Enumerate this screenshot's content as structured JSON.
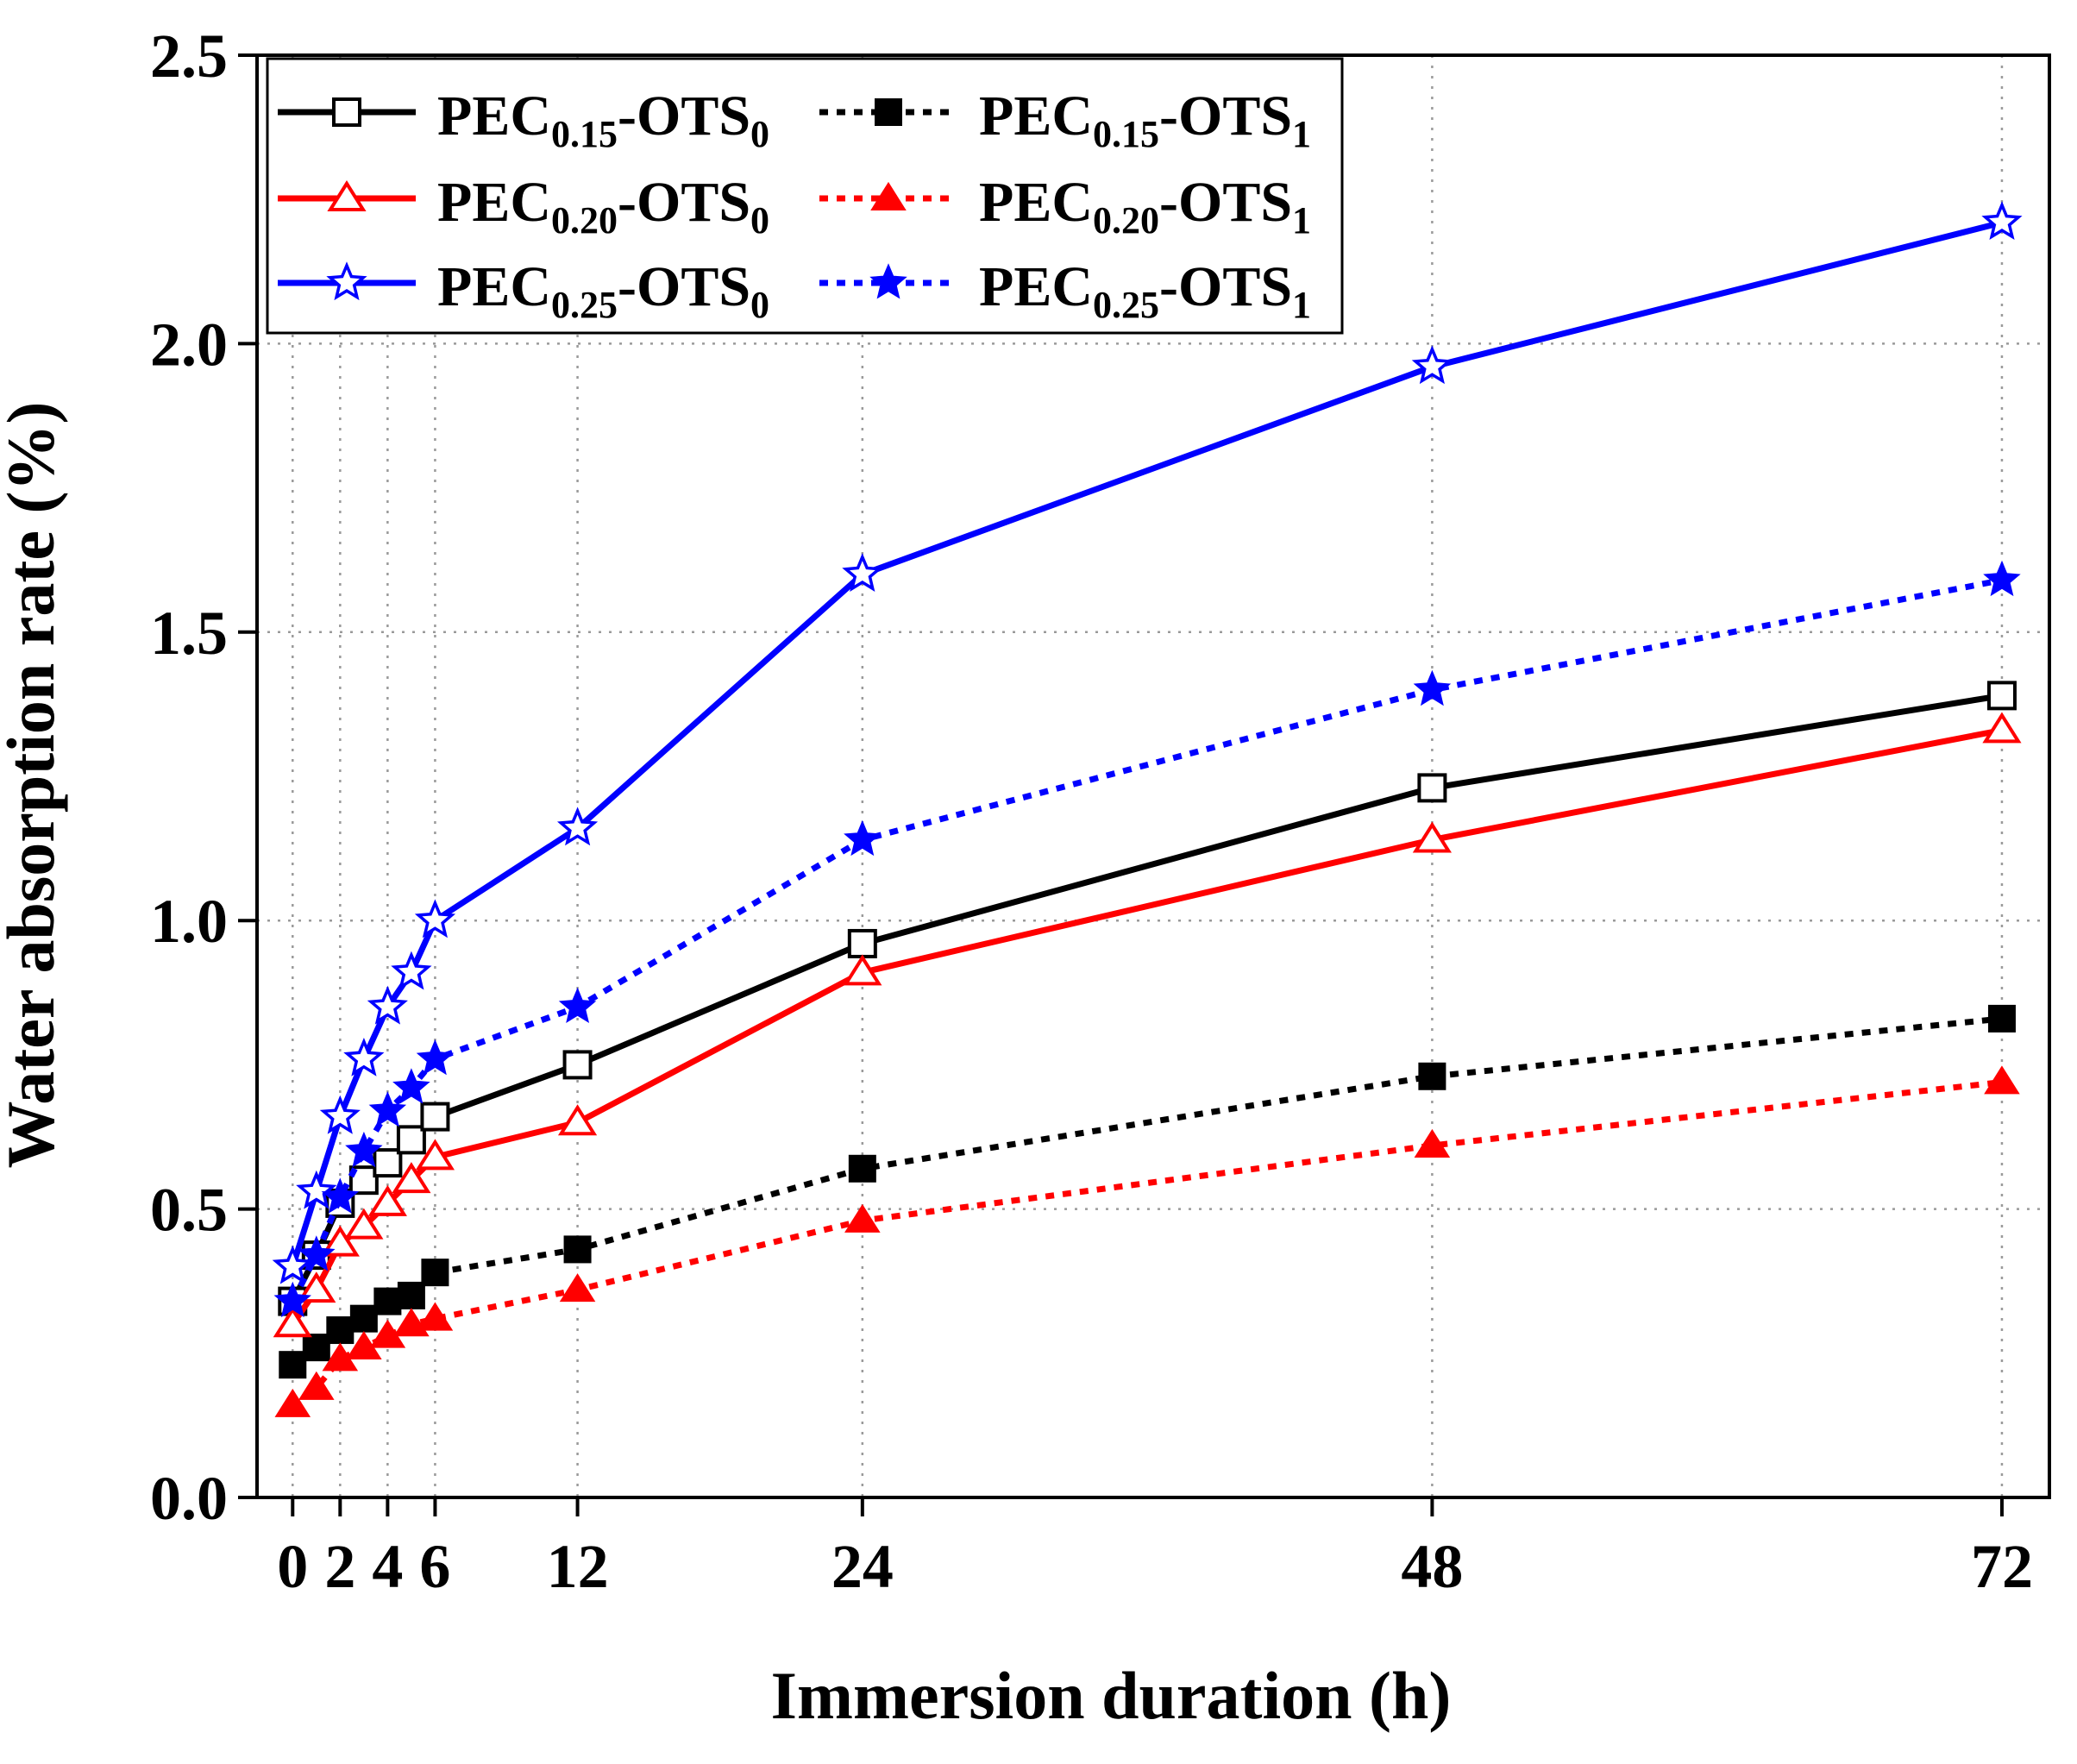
{
  "chart_data": {
    "type": "line",
    "title": "",
    "xlabel": "Immersion duration (h)",
    "ylabel": "Water absorption rate (%)",
    "xlim": [
      -1.5,
      74
    ],
    "ylim": [
      0,
      2.5
    ],
    "xticks": [
      0,
      2,
      4,
      6,
      12,
      24,
      48,
      72
    ],
    "yticks": [
      0.0,
      0.5,
      1.0,
      1.5,
      2.0,
      2.5
    ],
    "ytick_labels": [
      "0.0",
      "0.5",
      "1.0",
      "1.5",
      "2.0",
      "2.5"
    ],
    "grid": true,
    "legend_position": "top-left",
    "series": [
      {
        "name": "PEC0.15-OTS0",
        "legend": {
          "base": "PEC",
          "sub1": "0.15",
          "mid": "-OTS",
          "sub2": "0"
        },
        "color": "#000000",
        "dash": "solid",
        "marker": "square-open",
        "x": [
          0,
          1,
          2,
          3,
          4,
          5,
          6,
          12,
          24,
          48,
          72
        ],
        "y": [
          0.34,
          0.42,
          0.51,
          0.55,
          0.58,
          0.62,
          0.66,
          0.75,
          0.96,
          1.23,
          1.39
        ]
      },
      {
        "name": "PEC0.15-OTS1",
        "legend": {
          "base": "PEC",
          "sub1": "0.15",
          "mid": "-OTS",
          "sub2": "1"
        },
        "color": "#000000",
        "dash": "dotted",
        "marker": "square-filled",
        "x": [
          0,
          1,
          2,
          3,
          4,
          5,
          6,
          12,
          24,
          48,
          72
        ],
        "y": [
          0.23,
          0.26,
          0.29,
          0.31,
          0.34,
          0.35,
          0.39,
          0.43,
          0.57,
          0.73,
          0.83
        ]
      },
      {
        "name": "PEC0.20-OTS0",
        "legend": {
          "base": "PEC",
          "sub1": "0.20",
          "mid": "-OTS",
          "sub2": "0"
        },
        "color": "#ff0000",
        "dash": "solid",
        "marker": "triangle-open",
        "x": [
          0,
          1,
          2,
          3,
          4,
          5,
          6,
          12,
          24,
          48,
          72
        ],
        "y": [
          0.3,
          0.36,
          0.44,
          0.47,
          0.51,
          0.55,
          0.59,
          0.65,
          0.91,
          1.14,
          1.33
        ]
      },
      {
        "name": "PEC0.20-OTS1",
        "legend": {
          "base": "PEC",
          "sub1": "0.20",
          "mid": "-OTS",
          "sub2": "1"
        },
        "color": "#ff0000",
        "dash": "dotted",
        "marker": "triangle-filled",
        "x": [
          0,
          1,
          2,
          3,
          4,
          5,
          6,
          12,
          24,
          48,
          72
        ],
        "y": [
          0.16,
          0.19,
          0.24,
          0.26,
          0.28,
          0.3,
          0.31,
          0.36,
          0.48,
          0.61,
          0.72
        ]
      },
      {
        "name": "PEC0.25-OTS0",
        "legend": {
          "base": "PEC",
          "sub1": "0.25",
          "mid": "-OTS",
          "sub2": "0"
        },
        "color": "#0000ff",
        "dash": "solid",
        "marker": "star-open",
        "x": [
          0,
          1,
          2,
          3,
          4,
          5,
          6,
          12,
          24,
          48,
          72
        ],
        "y": [
          0.4,
          0.53,
          0.66,
          0.76,
          0.85,
          0.91,
          1.0,
          1.16,
          1.6,
          1.96,
          2.21
        ]
      },
      {
        "name": "PEC0.25-OTS1",
        "legend": {
          "base": "PEC",
          "sub1": "0.25",
          "mid": "-OTS",
          "sub2": "1"
        },
        "color": "#0000ff",
        "dash": "dotted",
        "marker": "star-filled",
        "x": [
          0,
          1,
          2,
          3,
          4,
          5,
          6,
          12,
          24,
          48,
          72
        ],
        "y": [
          0.34,
          0.42,
          0.52,
          0.6,
          0.67,
          0.71,
          0.76,
          0.85,
          1.14,
          1.4,
          1.59
        ]
      }
    ]
  }
}
